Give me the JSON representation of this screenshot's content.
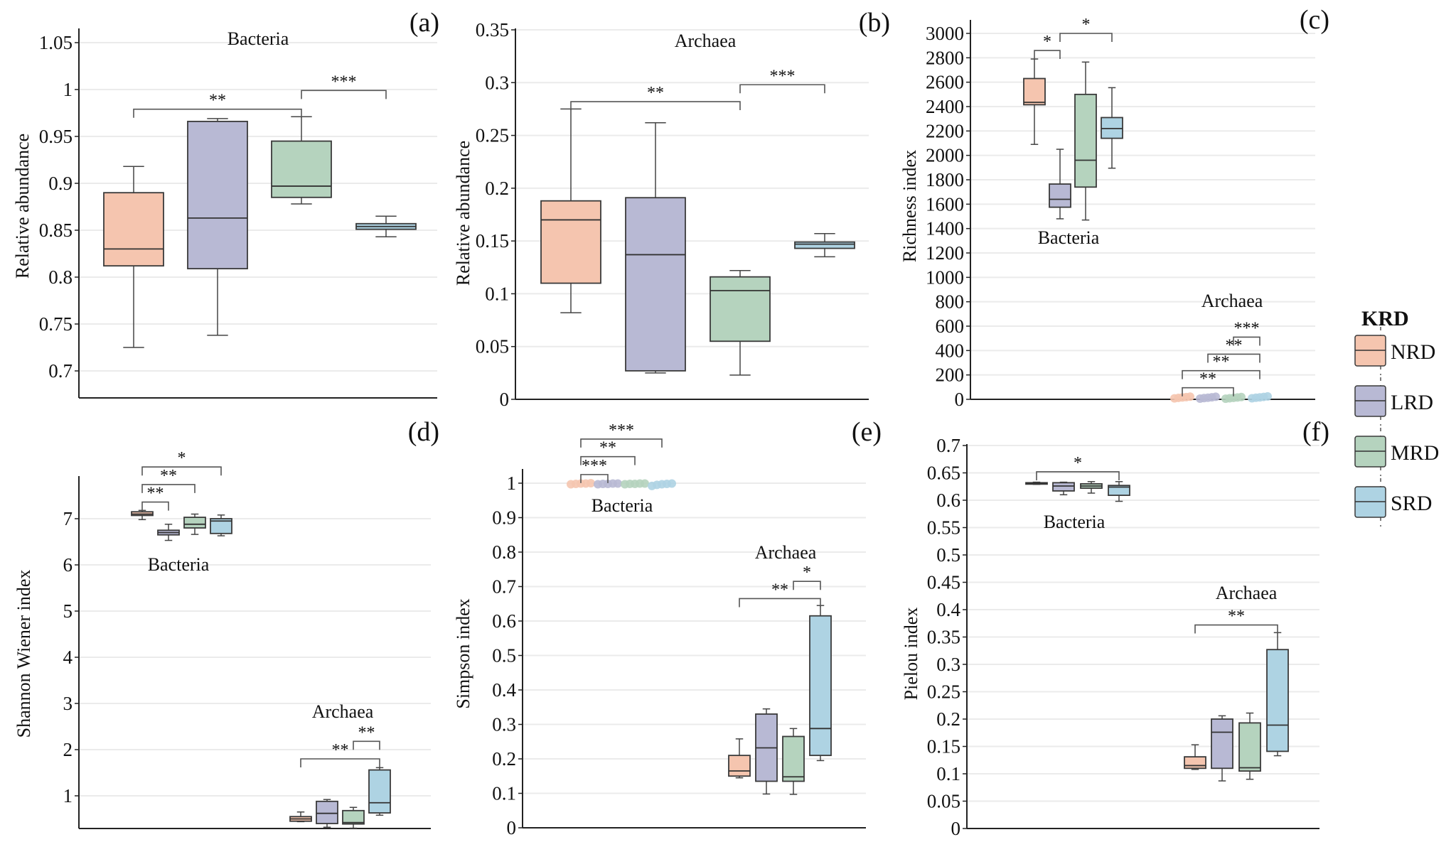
{
  "figure": {
    "colors": {
      "NRD": "#F5C5AF",
      "LRD": "#B8B9D4",
      "MRD": "#B5D3BE",
      "SRD": "#AED3E3",
      "axis": "#222222",
      "grid": "#EBEBEB",
      "bracket": "#555555"
    },
    "legend": {
      "title": "KRD",
      "items": [
        {
          "key": "NRD",
          "label": "NRD"
        },
        {
          "key": "LRD",
          "label": "LRD"
        },
        {
          "key": "MRD",
          "label": "MRD"
        },
        {
          "key": "SRD",
          "label": "SRD"
        }
      ]
    }
  },
  "chart_data": [
    {
      "id": "a",
      "tag": "(a)",
      "type": "box",
      "title": "Bacteria",
      "ylabel": "Relative abundance",
      "xlabel": "",
      "ylim": [
        0.67,
        1.06
      ],
      "yticks": [
        0.7,
        0.75,
        0.8,
        0.85,
        0.9,
        0.95,
        1,
        1.05
      ],
      "ytick_labels": [
        "0.7",
        "0.75",
        "0.8",
        "0.85",
        "0.9",
        "0.95",
        "1",
        "1.05"
      ],
      "grid": true,
      "groups": [
        {
          "label": "Bacteria",
          "boxes": [
            {
              "name": "NRD",
              "min": 0.725,
              "q1": 0.812,
              "median": 0.83,
              "q3": 0.89,
              "max": 0.918
            },
            {
              "name": "LRD",
              "min": 0.738,
              "q1": 0.809,
              "median": 0.863,
              "q3": 0.966,
              "max": 0.969
            },
            {
              "name": "MRD",
              "min": 0.878,
              "q1": 0.885,
              "median": 0.897,
              "q3": 0.945,
              "max": 0.971
            },
            {
              "name": "SRD",
              "min": 0.843,
              "q1": 0.851,
              "median": 0.854,
              "q3": 0.857,
              "max": 0.865
            }
          ],
          "significance": [
            {
              "from": "NRD",
              "to": "MRD",
              "label": "**",
              "y": 0.979
            },
            {
              "from": "MRD",
              "to": "SRD",
              "label": "***",
              "y": 0.999
            }
          ]
        }
      ]
    },
    {
      "id": "b",
      "tag": "(b)",
      "type": "box",
      "title": "Archaea",
      "ylabel": "Relative abundance",
      "xlabel": "",
      "ylim": [
        0,
        0.35
      ],
      "yticks": [
        0,
        0.05,
        0.1,
        0.15,
        0.2,
        0.25,
        0.3,
        0.35
      ],
      "ytick_labels": [
        "0",
        "0.05",
        "0.1",
        "0.15",
        "0.2",
        "0.25",
        "0.3",
        "0.35"
      ],
      "grid": true,
      "groups": [
        {
          "label": "Archaea",
          "boxes": [
            {
              "name": "NRD",
              "min": 0.082,
              "q1": 0.11,
              "median": 0.17,
              "q3": 0.188,
              "max": 0.275
            },
            {
              "name": "LRD",
              "min": 0.025,
              "q1": 0.027,
              "median": 0.137,
              "q3": 0.191,
              "max": 0.262
            },
            {
              "name": "MRD",
              "min": 0.023,
              "q1": 0.055,
              "median": 0.103,
              "q3": 0.116,
              "max": 0.122
            },
            {
              "name": "SRD",
              "min": 0.135,
              "q1": 0.143,
              "median": 0.147,
              "q3": 0.149,
              "max": 0.157
            }
          ],
          "significance": [
            {
              "from": "NRD",
              "to": "MRD",
              "label": "**",
              "y": 0.282
            },
            {
              "from": "MRD",
              "to": "SRD",
              "label": "***",
              "y": 0.298
            }
          ]
        }
      ]
    },
    {
      "id": "c",
      "tag": "(c)",
      "type": "box",
      "title": "",
      "ylabel": "Richness index",
      "xlabel": "",
      "ylim": [
        0,
        3100
      ],
      "yticks": [
        0,
        200,
        400,
        600,
        800,
        1000,
        1200,
        1400,
        1600,
        1800,
        2000,
        2200,
        2400,
        2600,
        2800,
        3000
      ],
      "ytick_labels": [
        "0",
        "200",
        "400",
        "600",
        "800",
        "1000",
        "1200",
        "1400",
        "1600",
        "1800",
        "2000",
        "2200",
        "2400",
        "2600",
        "2800",
        "3000"
      ],
      "grid": true,
      "groups": [
        {
          "label": "Bacteria",
          "boxes": [
            {
              "name": "NRD",
              "min": 2090,
              "q1": 2415,
              "median": 2435,
              "q3": 2630,
              "max": 2790
            },
            {
              "name": "LRD",
              "min": 1480,
              "q1": 1575,
              "median": 1640,
              "q3": 1765,
              "max": 2050
            },
            {
              "name": "MRD",
              "min": 1470,
              "q1": 1740,
              "median": 1960,
              "q3": 2500,
              "max": 2765
            },
            {
              "name": "SRD",
              "min": 1895,
              "q1": 2140,
              "median": 2220,
              "q3": 2310,
              "max": 2555
            }
          ],
          "significance": [
            {
              "from": "NRD",
              "to": "LRD",
              "label": "*",
              "y": 2860
            },
            {
              "from": "LRD",
              "to": "SRD",
              "label": "*",
              "y": 3000
            }
          ]
        },
        {
          "label": "Archaea",
          "boxes": [
            {
              "name": "NRD",
              "min": 8,
              "q1": 12,
              "median": 15,
              "q3": 18,
              "max": 22
            },
            {
              "name": "LRD",
              "min": 6,
              "q1": 10,
              "median": 13,
              "q3": 17,
              "max": 21
            },
            {
              "name": "MRD",
              "min": 5,
              "q1": 9,
              "median": 12,
              "q3": 15,
              "max": 19
            },
            {
              "name": "SRD",
              "min": 9,
              "q1": 13,
              "median": 16,
              "q3": 20,
              "max": 24
            }
          ],
          "significance": [
            {
              "from": "NRD",
              "to": "MRD",
              "label": "**",
              "y": 95
            },
            {
              "from": "NRD",
              "to": "SRD",
              "label": "**",
              "y": 235
            },
            {
              "from": "LRD",
              "to": "SRD",
              "label": "**",
              "y": 370
            },
            {
              "from": "MRD",
              "to": "SRD",
              "label": "***",
              "y": 510
            }
          ]
        }
      ]
    },
    {
      "id": "d",
      "tag": "(d)",
      "type": "box",
      "title": "",
      "ylabel": "Shannon Wiener index",
      "xlabel": "",
      "ylim": [
        0.25,
        7.9
      ],
      "yticks": [
        1,
        2,
        3,
        4,
        5,
        6,
        7
      ],
      "ytick_labels": [
        "1",
        "2",
        "3",
        "4",
        "5",
        "6",
        "7"
      ],
      "grid": true,
      "groups": [
        {
          "label": "Bacteria",
          "boxes": [
            {
              "name": "NRD",
              "min": 6.98,
              "q1": 7.07,
              "median": 7.1,
              "q3": 7.15,
              "max": 7.18
            },
            {
              "name": "LRD",
              "min": 6.53,
              "q1": 6.65,
              "median": 6.7,
              "q3": 6.75,
              "max": 6.88
            },
            {
              "name": "MRD",
              "min": 6.66,
              "q1": 6.8,
              "median": 6.88,
              "q3": 7.03,
              "max": 7.1
            },
            {
              "name": "SRD",
              "min": 6.63,
              "q1": 6.68,
              "median": 6.95,
              "q3": 7.0,
              "max": 7.08
            }
          ],
          "significance": [
            {
              "from": "NRD",
              "to": "LRD",
              "label": "**",
              "y": 7.36
            },
            {
              "from": "NRD",
              "to": "MRD",
              "label": "**",
              "y": 7.74
            },
            {
              "from": "NRD",
              "to": "SRD",
              "label": "*",
              "y": 8.12
            }
          ]
        },
        {
          "label": "Archaea",
          "boxes": [
            {
              "name": "NRD",
              "min": 0.44,
              "q1": 0.45,
              "median": 0.5,
              "q3": 0.55,
              "max": 0.65
            },
            {
              "name": "LRD",
              "min": 0.32,
              "q1": 0.4,
              "median": 0.62,
              "q3": 0.88,
              "max": 0.92
            },
            {
              "name": "MRD",
              "min": 0.3,
              "q1": 0.39,
              "median": 0.42,
              "q3": 0.68,
              "max": 0.75
            },
            {
              "name": "SRD",
              "min": 0.58,
              "q1": 0.63,
              "median": 0.85,
              "q3": 1.56,
              "max": 1.61
            }
          ],
          "significance": [
            {
              "from": "NRD",
              "to": "SRD",
              "label": "**",
              "y": 1.8
            },
            {
              "from": "MRD",
              "to": "SRD",
              "label": "**",
              "y": 2.18
            }
          ]
        }
      ]
    },
    {
      "id": "e",
      "tag": "(e)",
      "type": "box",
      "title": "",
      "ylabel": "Simpson index",
      "xlabel": "",
      "ylim": [
        0,
        1.0
      ],
      "yticks": [
        0,
        0.1,
        0.2,
        0.3,
        0.4,
        0.5,
        0.6,
        0.7,
        0.8,
        0.9,
        1
      ],
      "ytick_labels": [
        "0",
        "0.1",
        "0.2",
        "0.3",
        "0.4",
        "0.5",
        "0.6",
        "0.7",
        "0.8",
        "0.9",
        "1"
      ],
      "grid": true,
      "groups": [
        {
          "label": "Bacteria",
          "boxes": [
            {
              "name": "NRD",
              "min": 0.997,
              "q1": 0.998,
              "median": 0.999,
              "q3": 0.999,
              "max": 1.0
            },
            {
              "name": "LRD",
              "min": 0.997,
              "q1": 0.998,
              "median": 0.998,
              "q3": 0.999,
              "max": 0.999
            },
            {
              "name": "MRD",
              "min": 0.997,
              "q1": 0.998,
              "median": 0.998,
              "q3": 0.999,
              "max": 0.999
            },
            {
              "name": "SRD",
              "min": 0.992,
              "q1": 0.995,
              "median": 0.997,
              "q3": 0.998,
              "max": 0.999
            }
          ],
          "significance": [
            {
              "from": "NRD",
              "to": "LRD",
              "label": "***",
              "y": 1.025
            },
            {
              "from": "NRD",
              "to": "MRD",
              "label": "**",
              "y": 1.077
            },
            {
              "from": "NRD",
              "to": "SRD",
              "label": "***",
              "y": 1.128
            }
          ]
        },
        {
          "label": "Archaea",
          "boxes": [
            {
              "name": "NRD",
              "min": 0.145,
              "q1": 0.15,
              "median": 0.165,
              "q3": 0.21,
              "max": 0.258
            },
            {
              "name": "LRD",
              "min": 0.098,
              "q1": 0.135,
              "median": 0.232,
              "q3": 0.33,
              "max": 0.345
            },
            {
              "name": "MRD",
              "min": 0.097,
              "q1": 0.135,
              "median": 0.148,
              "q3": 0.265,
              "max": 0.288
            },
            {
              "name": "SRD",
              "min": 0.195,
              "q1": 0.21,
              "median": 0.288,
              "q3": 0.615,
              "max": 0.645
            }
          ],
          "significance": [
            {
              "from": "NRD",
              "to": "SRD",
              "label": "**",
              "y": 0.665
            },
            {
              "from": "MRD",
              "to": "SRD",
              "label": "*",
              "y": 0.715
            }
          ]
        }
      ]
    },
    {
      "id": "f",
      "tag": "(f)",
      "type": "box",
      "title": "",
      "ylabel": "Pielou index",
      "xlabel": "",
      "ylim": [
        0,
        0.7
      ],
      "yticks": [
        0,
        0.05,
        0.1,
        0.15,
        0.2,
        0.25,
        0.3,
        0.35,
        0.4,
        0.45,
        0.5,
        0.55,
        0.6,
        0.65,
        0.7
      ],
      "ytick_labels": [
        "0",
        "0.05",
        "0.1",
        "0.15",
        "0.2",
        "0.25",
        "0.3",
        "0.35",
        "0.4",
        "0.45",
        "0.5",
        "0.55",
        "0.6",
        "0.65",
        "0.7"
      ],
      "grid": true,
      "groups": [
        {
          "label": "Bacteria",
          "boxes": [
            {
              "name": "NRD",
              "min": 0.629,
              "q1": 0.63,
              "median": 0.631,
              "q3": 0.632,
              "max": 0.633
            },
            {
              "name": "LRD",
              "min": 0.61,
              "q1": 0.617,
              "median": 0.626,
              "q3": 0.632,
              "max": 0.633
            },
            {
              "name": "MRD",
              "min": 0.613,
              "q1": 0.622,
              "median": 0.626,
              "q3": 0.63,
              "max": 0.634
            },
            {
              "name": "SRD",
              "min": 0.598,
              "q1": 0.609,
              "median": 0.624,
              "q3": 0.627,
              "max": 0.634
            }
          ],
          "significance": [
            {
              "from": "NRD",
              "to": "SRD",
              "label": "*",
              "y": 0.652
            }
          ]
        },
        {
          "label": "Archaea",
          "boxes": [
            {
              "name": "NRD",
              "min": 0.108,
              "q1": 0.11,
              "median": 0.115,
              "q3": 0.131,
              "max": 0.153
            },
            {
              "name": "LRD",
              "min": 0.087,
              "q1": 0.11,
              "median": 0.176,
              "q3": 0.2,
              "max": 0.206
            },
            {
              "name": "MRD",
              "min": 0.09,
              "q1": 0.105,
              "median": 0.111,
              "q3": 0.193,
              "max": 0.211
            },
            {
              "name": "SRD",
              "min": 0.133,
              "q1": 0.141,
              "median": 0.189,
              "q3": 0.327,
              "max": 0.358
            }
          ],
          "significance": [
            {
              "from": "NRD",
              "to": "SRD",
              "label": "**",
              "y": 0.372
            }
          ]
        }
      ]
    }
  ]
}
